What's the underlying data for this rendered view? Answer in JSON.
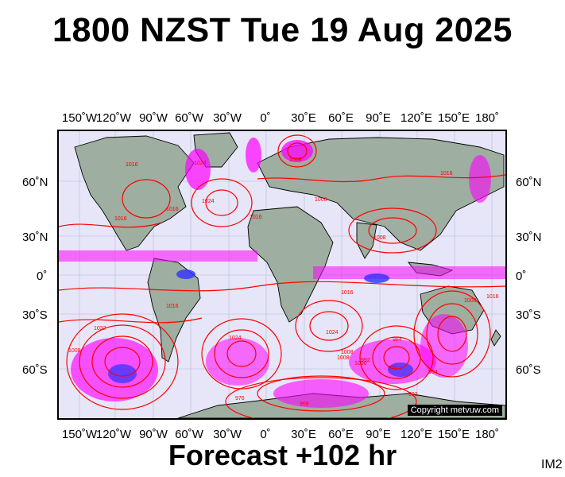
{
  "title": "1800 NZST Tue 19 Aug 2025",
  "forecast_label": "Forecast +102 hr",
  "image_code": "IM2",
  "copyright": "Copyright metvuw.com",
  "longitude_labels": [
    "150˚W",
    "120˚W",
    "90˚W",
    "60˚W",
    "30˚W",
    "0˚",
    "30˚E",
    "60˚E",
    "90˚E",
    "120˚E",
    "150˚E",
    "180˚"
  ],
  "latitude_labels": [
    "60˚N",
    "30˚N",
    "0˚",
    "30˚S",
    "60˚S"
  ],
  "pressure_labels": [
    "1016",
    "1024",
    "1016",
    "1016",
    "1008",
    "1024",
    "1016",
    "1008",
    "1008",
    "1016",
    "1032",
    "1008",
    "1024",
    "1016",
    "1016",
    "1008",
    "1024",
    "976",
    "968",
    "1008",
    "1000",
    "992",
    "984",
    "976",
    "984",
    "992",
    "1008",
    "1016"
  ],
  "colors": {
    "isobar": "#ff0000",
    "land": "#9eaea0",
    "ocean": "#e6e6f8",
    "rain_magenta": "#ff00ff",
    "rain_blue": "#3030ff"
  }
}
